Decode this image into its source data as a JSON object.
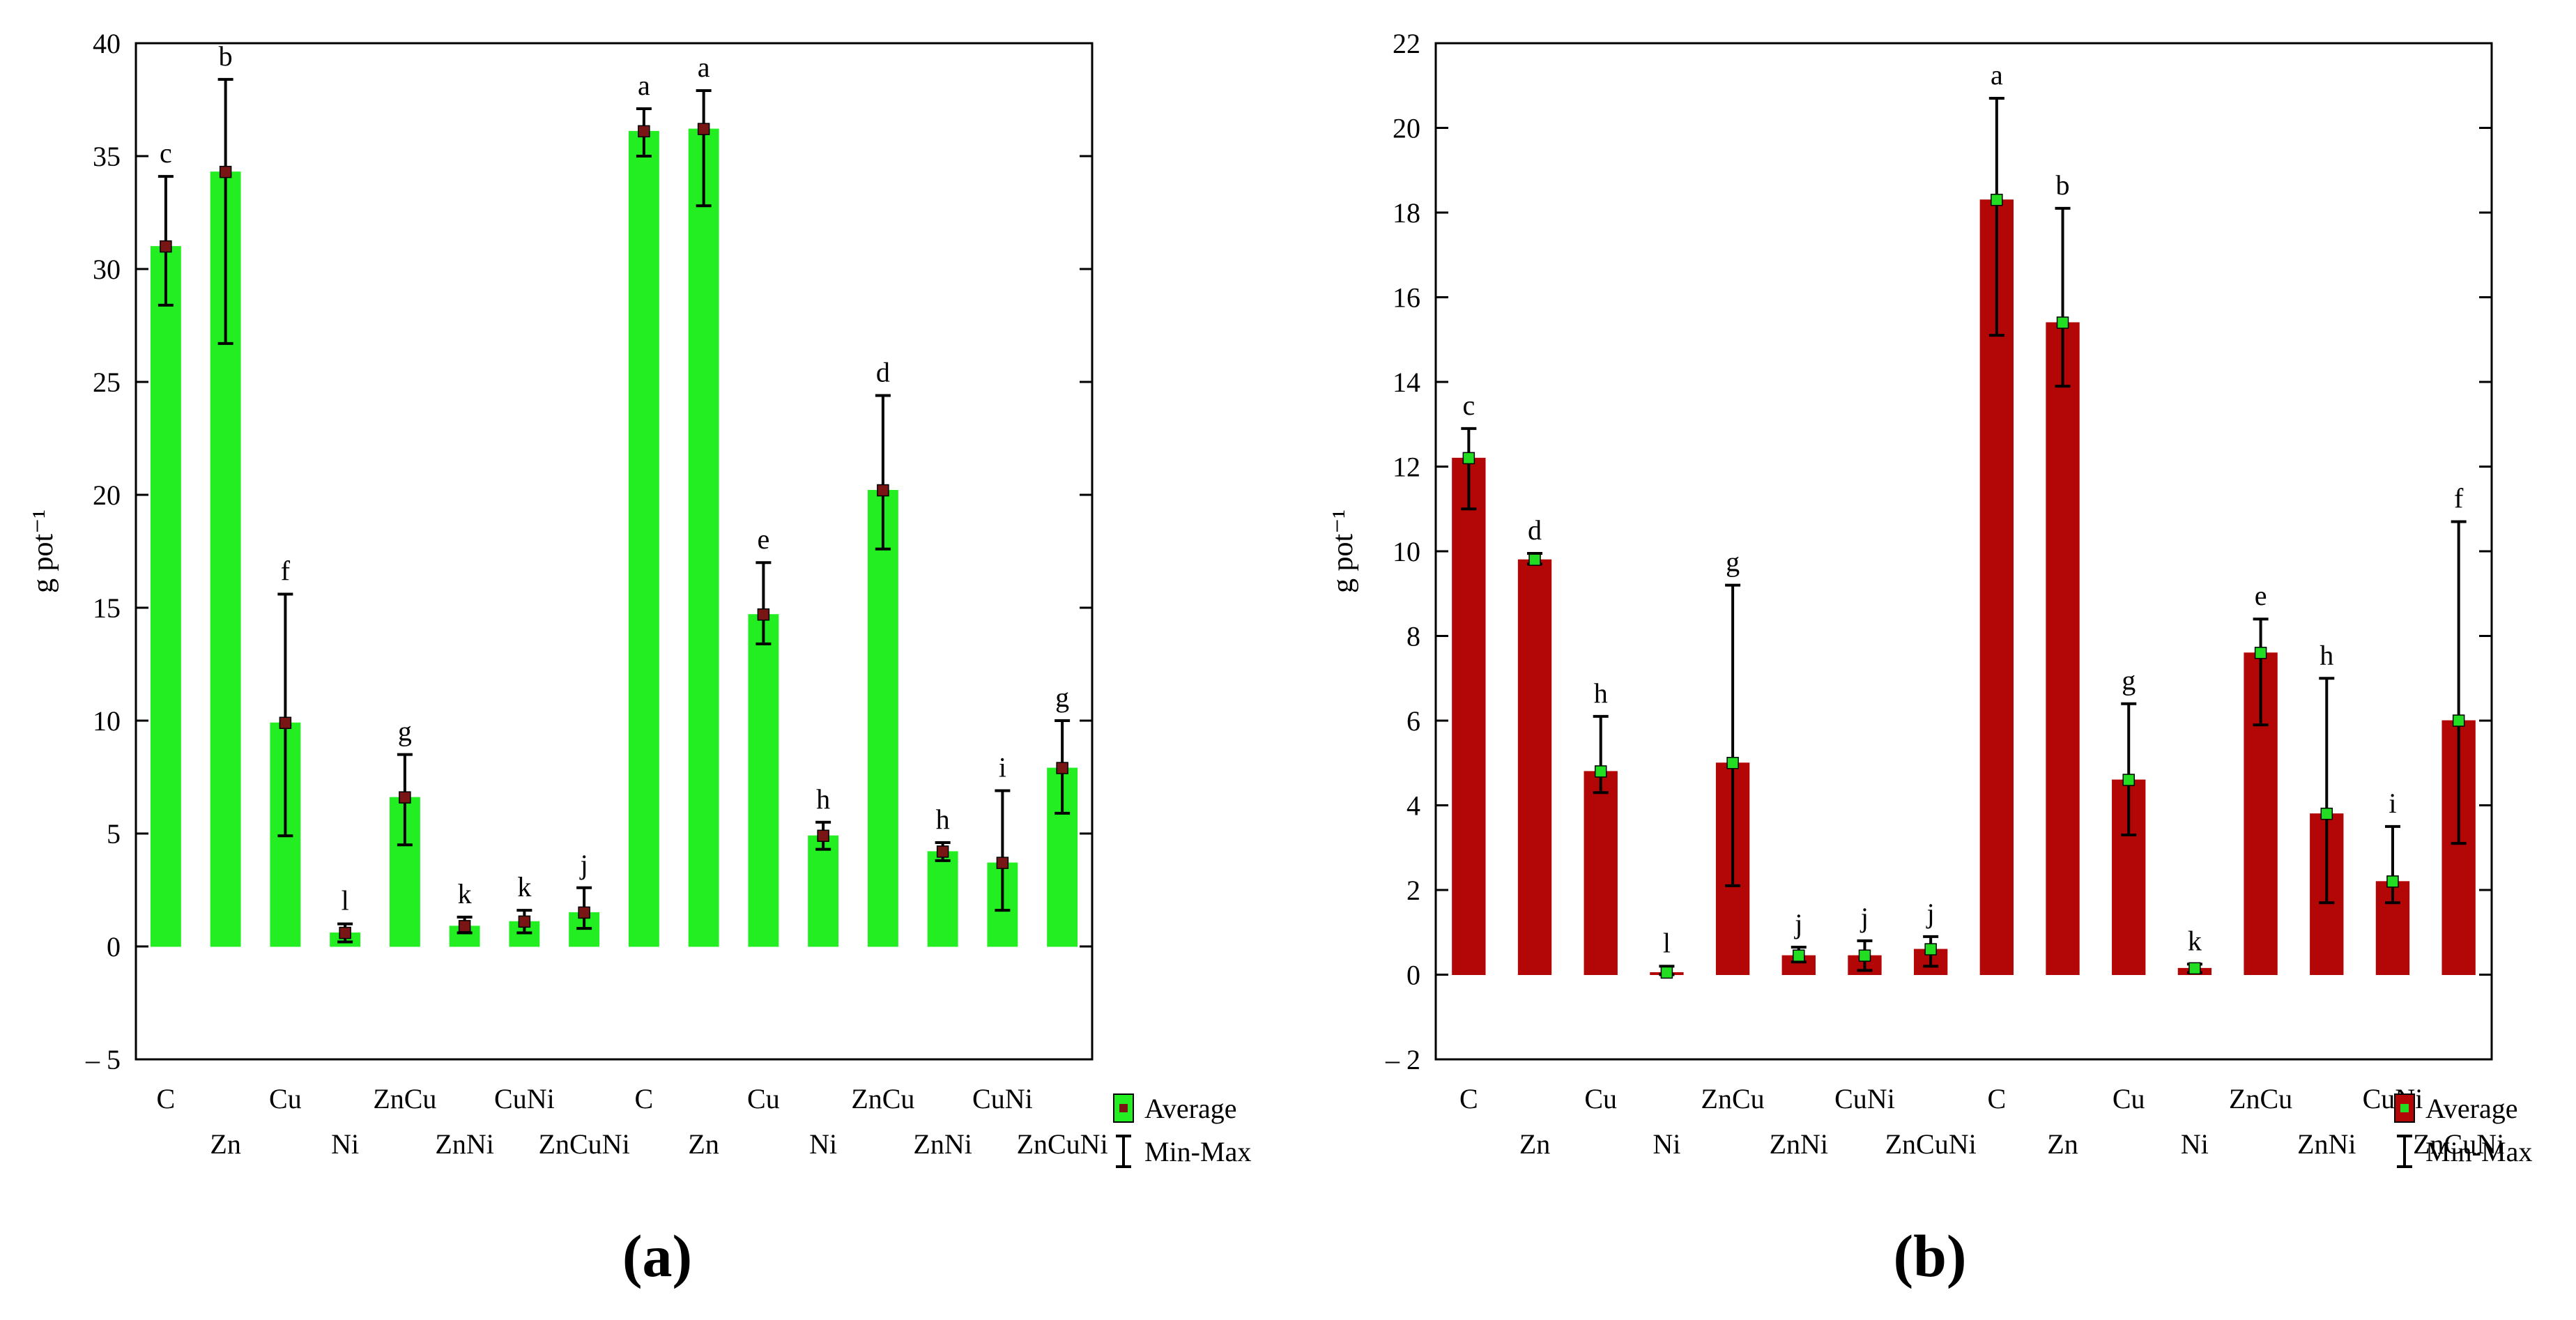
{
  "chart_data": [
    {
      "type": "bar",
      "panel_label": "(a)",
      "ylabel": "g pot⁻¹",
      "ylim": [
        -5,
        40
      ],
      "yticks": [
        "– 5",
        "0",
        "5",
        "10",
        "15",
        "20",
        "25",
        "30",
        "35",
        "40"
      ],
      "categories": [
        "C",
        "Zn",
        "Cu",
        "Ni",
        "ZnCu",
        "ZnNi",
        "CuNi",
        "ZnCuNi",
        "C",
        "Zn",
        "Cu",
        "Ni",
        "ZnCu",
        "ZnNi",
        "CuNi",
        "ZnCuNi"
      ],
      "values": [
        31.0,
        34.3,
        9.9,
        0.6,
        6.6,
        0.9,
        1.1,
        1.5,
        36.1,
        36.2,
        14.7,
        4.9,
        20.2,
        4.2,
        3.7,
        7.9
      ],
      "min": [
        28.4,
        26.7,
        4.9,
        0.2,
        4.5,
        0.6,
        0.6,
        0.8,
        35.0,
        32.8,
        13.4,
        4.3,
        17.6,
        3.8,
        1.6,
        5.9
      ],
      "max": [
        34.1,
        38.4,
        15.6,
        1.0,
        8.5,
        1.3,
        1.6,
        2.6,
        37.1,
        37.9,
        17.0,
        5.5,
        24.4,
        4.6,
        6.9,
        10.0
      ],
      "letters": [
        "c",
        "b",
        "f",
        "l",
        "g",
        "k",
        "k",
        "j",
        "a",
        "a",
        "e",
        "h",
        "d",
        "h",
        "i",
        "g"
      ],
      "bar_color": "#22ee22",
      "marker_color": "#7a1515",
      "legend": {
        "average": "Average",
        "minmax": "Min-Max"
      }
    },
    {
      "type": "bar",
      "panel_label": "(b)",
      "ylabel": "g pot⁻¹",
      "ylim": [
        -2,
        22
      ],
      "yticks": [
        "– 2",
        "0",
        "2",
        "4",
        "6",
        "8",
        "10",
        "12",
        "14",
        "16",
        "18",
        "20",
        "22"
      ],
      "categories": [
        "C",
        "Zn",
        "Cu",
        "Ni",
        "ZnCu",
        "ZnNi",
        "CuNi",
        "ZnCuNi",
        "C",
        "Zn",
        "Cu",
        "Ni",
        "ZnCu",
        "ZnNi",
        "CuNi",
        "ZnCuNi"
      ],
      "values": [
        12.2,
        9.8,
        4.8,
        0.05,
        5.0,
        0.45,
        0.45,
        0.6,
        18.3,
        15.4,
        4.6,
        0.15,
        7.6,
        3.8,
        2.2,
        6.0
      ],
      "min": [
        11.0,
        9.7,
        4.3,
        0.0,
        2.1,
        0.3,
        0.1,
        0.2,
        15.1,
        13.9,
        3.3,
        0.05,
        5.9,
        1.7,
        1.7,
        3.1
      ],
      "max": [
        12.9,
        9.95,
        6.1,
        0.2,
        9.2,
        0.65,
        0.8,
        0.9,
        20.7,
        18.1,
        6.4,
        0.25,
        8.4,
        7.0,
        3.5,
        10.7
      ],
      "letters": [
        "c",
        "d",
        "h",
        "l",
        "g",
        "j",
        "j",
        "j",
        "a",
        "b",
        "g",
        "k",
        "e",
        "h",
        "i",
        "f"
      ],
      "bar_color": "#b30606",
      "marker_color": "#22dd22",
      "legend": {
        "average": "Average",
        "minmax": "Min-Max"
      }
    }
  ]
}
